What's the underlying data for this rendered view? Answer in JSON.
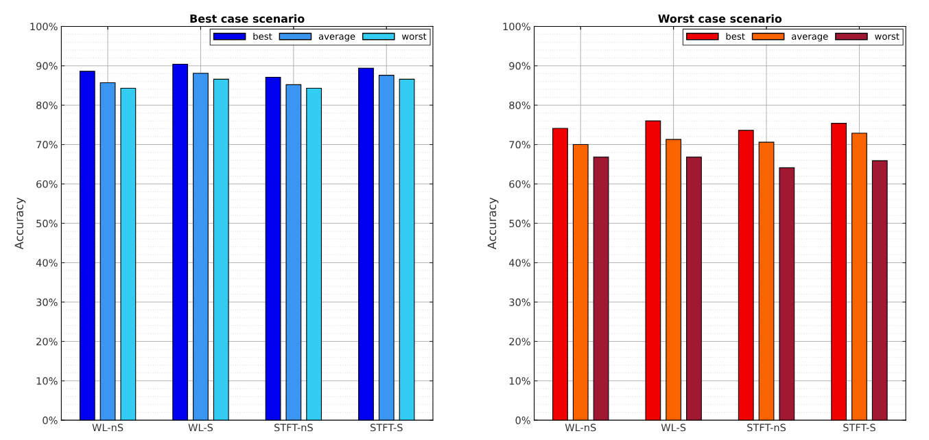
{
  "chart_data": [
    {
      "type": "bar",
      "title": "Best case scenario",
      "ylabel": "Accuracy",
      "categories": [
        "WL-nS",
        "WL-S",
        "STFT-nS",
        "STFT-S"
      ],
      "series": [
        {
          "name": "best",
          "color": "#0000f0",
          "values": [
            88.6,
            90.4,
            87.1,
            89.4
          ]
        },
        {
          "name": "average",
          "color": "#3a96f0",
          "values": [
            85.7,
            88.1,
            85.2,
            87.6
          ]
        },
        {
          "name": "worst",
          "color": "#33ccf2",
          "values": [
            84.3,
            86.6,
            84.3,
            86.6
          ]
        }
      ],
      "ylim": [
        0,
        100
      ],
      "yticks": [
        {
          "value": 0,
          "label": "0%"
        },
        {
          "value": 10,
          "label": "10%"
        },
        {
          "value": 20,
          "label": "20%"
        },
        {
          "value": 30,
          "label": "30%"
        },
        {
          "value": 40,
          "label": "40%"
        },
        {
          "value": 50,
          "label": "50%"
        },
        {
          "value": 60,
          "label": "60%"
        },
        {
          "value": 70,
          "label": "70%"
        },
        {
          "value": 80,
          "label": "80%"
        },
        {
          "value": 90,
          "label": "90%"
        },
        {
          "value": 100,
          "label": "100%"
        }
      ],
      "grid": true,
      "legend": "top right"
    },
    {
      "type": "bar",
      "title": "Worst case scenario",
      "ylabel": "Accuracy",
      "categories": [
        "WL-nS",
        "WL-S",
        "STFT-nS",
        "STFT-S"
      ],
      "series": [
        {
          "name": "best",
          "color": "#f00000",
          "values": [
            74.1,
            76.0,
            73.6,
            75.4
          ]
        },
        {
          "name": "average",
          "color": "#fa6400",
          "values": [
            70.0,
            71.3,
            70.6,
            72.9
          ]
        },
        {
          "name": "worst",
          "color": "#a01832",
          "values": [
            66.8,
            66.8,
            64.1,
            65.9
          ]
        }
      ],
      "ylim": [
        0,
        100
      ],
      "yticks": [
        {
          "value": 0,
          "label": "0%"
        },
        {
          "value": 10,
          "label": "10%"
        },
        {
          "value": 20,
          "label": "20%"
        },
        {
          "value": 30,
          "label": "30%"
        },
        {
          "value": 40,
          "label": "40%"
        },
        {
          "value": 50,
          "label": "50%"
        },
        {
          "value": 60,
          "label": "60%"
        },
        {
          "value": 70,
          "label": "70%"
        },
        {
          "value": 80,
          "label": "80%"
        },
        {
          "value": 90,
          "label": "90%"
        },
        {
          "value": 100,
          "label": "100%"
        }
      ],
      "grid": true,
      "legend": "top right"
    }
  ]
}
